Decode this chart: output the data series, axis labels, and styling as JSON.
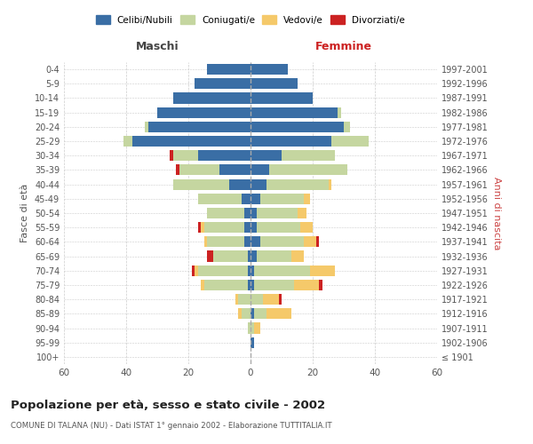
{
  "age_groups": [
    "100+",
    "95-99",
    "90-94",
    "85-89",
    "80-84",
    "75-79",
    "70-74",
    "65-69",
    "60-64",
    "55-59",
    "50-54",
    "45-49",
    "40-44",
    "35-39",
    "30-34",
    "25-29",
    "20-24",
    "15-19",
    "10-14",
    "5-9",
    "0-4"
  ],
  "birth_years": [
    "≤ 1901",
    "1902-1906",
    "1907-1911",
    "1912-1916",
    "1917-1921",
    "1922-1926",
    "1927-1931",
    "1932-1936",
    "1937-1941",
    "1942-1946",
    "1947-1951",
    "1952-1956",
    "1957-1961",
    "1962-1966",
    "1967-1971",
    "1972-1976",
    "1977-1981",
    "1982-1986",
    "1987-1991",
    "1992-1996",
    "1997-2001"
  ],
  "male": {
    "celibi": [
      0,
      0,
      0,
      0,
      0,
      1,
      1,
      1,
      2,
      2,
      2,
      3,
      7,
      10,
      17,
      38,
      33,
      30,
      25,
      18,
      14
    ],
    "coniugati": [
      0,
      0,
      1,
      3,
      4,
      14,
      16,
      11,
      12,
      13,
      12,
      14,
      18,
      13,
      8,
      3,
      1,
      0,
      0,
      0,
      0
    ],
    "vedovi": [
      0,
      0,
      0,
      1,
      1,
      1,
      1,
      0,
      1,
      1,
      0,
      0,
      0,
      0,
      0,
      0,
      0,
      0,
      0,
      0,
      0
    ],
    "divorziati": [
      0,
      0,
      0,
      0,
      0,
      0,
      1,
      2,
      0,
      1,
      0,
      0,
      0,
      1,
      1,
      0,
      0,
      0,
      0,
      0,
      0
    ]
  },
  "female": {
    "nubili": [
      0,
      1,
      0,
      1,
      0,
      1,
      1,
      2,
      3,
      2,
      2,
      3,
      5,
      6,
      10,
      26,
      30,
      28,
      20,
      15,
      12
    ],
    "coniugate": [
      0,
      0,
      1,
      4,
      4,
      13,
      18,
      11,
      14,
      14,
      13,
      14,
      20,
      25,
      17,
      12,
      2,
      1,
      0,
      0,
      0
    ],
    "vedove": [
      0,
      0,
      2,
      8,
      5,
      8,
      8,
      4,
      4,
      4,
      3,
      2,
      1,
      0,
      0,
      0,
      0,
      0,
      0,
      0,
      0
    ],
    "divorziate": [
      0,
      0,
      0,
      0,
      1,
      1,
      0,
      0,
      1,
      0,
      0,
      0,
      0,
      0,
      0,
      0,
      0,
      0,
      0,
      0,
      0
    ]
  },
  "colors": {
    "celibi": "#3a6ea5",
    "coniugati": "#c5d6a0",
    "vedovi": "#f5c96a",
    "divorziati": "#cc2222"
  },
  "xlim": 60,
  "title": "Popolazione per età, sesso e stato civile - 2002",
  "subtitle": "COMUNE DI TALANA (NU) - Dati ISTAT 1° gennaio 2002 - Elaborazione TUTTITALIA.IT",
  "ylabel_left": "Fasce di età",
  "ylabel_right": "Anni di nascita",
  "xlabel_left": "Maschi",
  "xlabel_right": "Femmine",
  "bg_color": "#ffffff",
  "grid_color": "#cccccc"
}
